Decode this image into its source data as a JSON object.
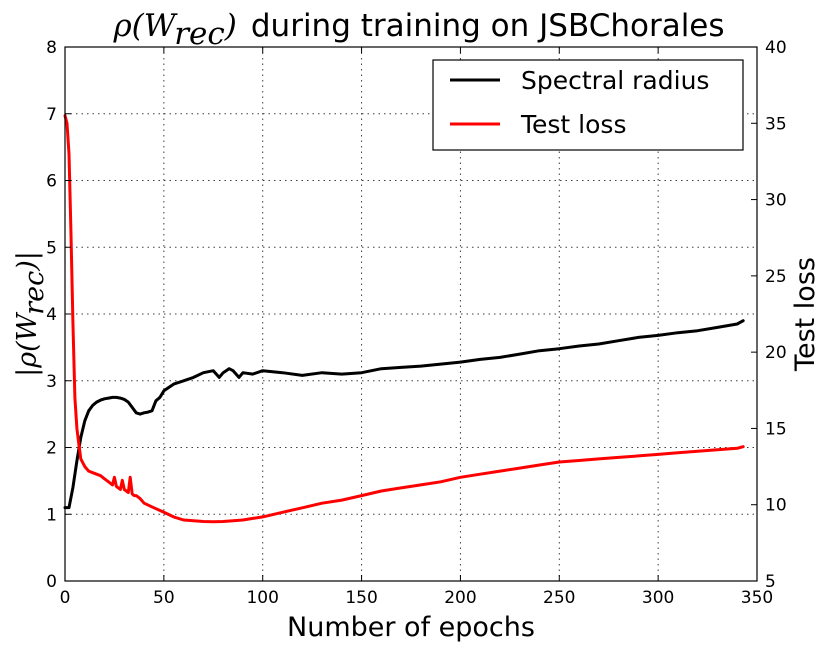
{
  "chart_data": {
    "type": "line",
    "title_math": "ρ(W",
    "title_math_sub": "rec",
    "title_math_close": ")",
    "title_text": "during training on JSBChorales",
    "xlabel": "Number of epochs",
    "ylabel_left_math": "|ρ(W",
    "ylabel_left_sub": "rec",
    "ylabel_left_close": ")|",
    "ylabel_right": "Test loss",
    "xlim": [
      0,
      350
    ],
    "ylim_left": [
      0,
      8
    ],
    "ylim_right": [
      5,
      40
    ],
    "xticks": [
      0,
      50,
      100,
      150,
      200,
      250,
      300,
      350
    ],
    "yticks_left": [
      0,
      1,
      2,
      3,
      4,
      5,
      6,
      7,
      8
    ],
    "yticks_right": [
      5,
      10,
      15,
      20,
      25,
      30,
      35,
      40
    ],
    "grid": true,
    "legend_position": "top-right",
    "series": [
      {
        "name": "Spectral radius",
        "axis": "left",
        "color": "#000000",
        "x": [
          0,
          2,
          4,
          6,
          8,
          10,
          12,
          14,
          16,
          18,
          20,
          22,
          24,
          26,
          28,
          30,
          32,
          34,
          36,
          38,
          40,
          42,
          44,
          46,
          48,
          50,
          55,
          60,
          65,
          70,
          75,
          78,
          80,
          83,
          85,
          88,
          90,
          95,
          100,
          110,
          120,
          130,
          140,
          150,
          160,
          170,
          180,
          190,
          200,
          210,
          220,
          230,
          240,
          250,
          260,
          270,
          280,
          290,
          300,
          310,
          320,
          330,
          340,
          343
        ],
        "y": [
          1.1,
          1.1,
          1.4,
          1.8,
          2.15,
          2.4,
          2.55,
          2.63,
          2.68,
          2.71,
          2.73,
          2.74,
          2.75,
          2.75,
          2.74,
          2.72,
          2.68,
          2.6,
          2.52,
          2.5,
          2.52,
          2.53,
          2.55,
          2.7,
          2.75,
          2.85,
          2.95,
          3.0,
          3.05,
          3.12,
          3.15,
          3.05,
          3.12,
          3.18,
          3.15,
          3.05,
          3.12,
          3.1,
          3.15,
          3.12,
          3.08,
          3.12,
          3.1,
          3.12,
          3.18,
          3.2,
          3.22,
          3.25,
          3.28,
          3.32,
          3.35,
          3.4,
          3.45,
          3.48,
          3.52,
          3.55,
          3.6,
          3.65,
          3.68,
          3.72,
          3.75,
          3.8,
          3.85,
          3.9
        ]
      },
      {
        "name": "Test loss",
        "axis": "right",
        "color": "#ff0000",
        "x": [
          0,
          1,
          2,
          3,
          4,
          5,
          6,
          7,
          8,
          10,
          12,
          14,
          16,
          18,
          20,
          22,
          24,
          25,
          26,
          28,
          29,
          30,
          32,
          33,
          34,
          35,
          36,
          38,
          40,
          45,
          50,
          55,
          60,
          65,
          70,
          75,
          80,
          85,
          90,
          95,
          100,
          110,
          120,
          130,
          140,
          150,
          160,
          170,
          180,
          190,
          200,
          210,
          220,
          230,
          240,
          250,
          260,
          270,
          280,
          290,
          300,
          310,
          320,
          330,
          340,
          343
        ],
        "y": [
          35.5,
          35.0,
          33.0,
          28.0,
          22.0,
          17.0,
          15.0,
          14.0,
          13.0,
          12.5,
          12.2,
          12.1,
          12.0,
          11.9,
          11.7,
          11.5,
          11.3,
          11.8,
          11.2,
          11.0,
          11.6,
          11.0,
          10.8,
          11.8,
          10.7,
          10.6,
          10.6,
          10.4,
          10.1,
          9.8,
          9.5,
          9.2,
          9.0,
          8.95,
          8.9,
          8.88,
          8.9,
          8.95,
          9.0,
          9.1,
          9.2,
          9.5,
          9.8,
          10.1,
          10.3,
          10.6,
          10.9,
          11.1,
          11.3,
          11.5,
          11.8,
          12.0,
          12.2,
          12.4,
          12.6,
          12.8,
          12.9,
          13.0,
          13.1,
          13.2,
          13.3,
          13.4,
          13.5,
          13.6,
          13.7,
          13.8
        ]
      }
    ]
  }
}
